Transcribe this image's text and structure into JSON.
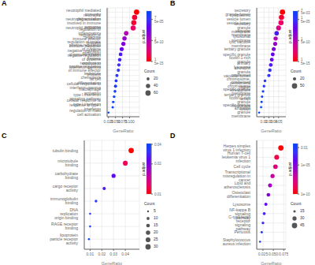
{
  "chart_data": [
    {
      "type": "scatter",
      "title": "A",
      "categories": [
        "neutrophil mediated immunity",
        "neutrophil degranulation",
        "neutrophil activation involved in immune response",
        "neutrophil activation",
        "regulation of inflammatory response",
        "regulation of immune effector process",
        "regulation of innate immune response",
        "positive regulation of cytokine production",
        "negative regulation of immune system process",
        "negative regulation of cytokine production",
        "response to interferon-gamma",
        "positive regulation of immune effector process",
        "leukocyte chemotaxis",
        "fat cell differentiation",
        "cellular response to interferon-gamma",
        "macrophage activation",
        "type I interferon signaling pathway",
        "cellular response to type I interferon",
        "response to type I interferon",
        "regulation of mast cell activation"
      ],
      "values": [
        0.125,
        0.118,
        0.115,
        0.113,
        0.088,
        0.082,
        0.078,
        0.072,
        0.068,
        0.065,
        0.062,
        0.06,
        0.055,
        0.052,
        0.05,
        0.048,
        0.045,
        0.042,
        0.04,
        0.025
      ],
      "count": [
        60,
        58,
        56,
        55,
        42,
        40,
        38,
        35,
        30,
        28,
        25,
        24,
        22,
        20,
        22,
        18,
        16,
        15,
        14,
        10
      ],
      "p_adjust": [
        1e-15,
        1e-14,
        1e-14,
        1e-13,
        1e-10,
        1e-09,
        1e-08,
        5e-08,
        1e-06,
        2e-06,
        5e-06,
        1e-05,
        2e-05,
        3e-05,
        0.0001,
        0.0002,
        0.0003,
        0.0005,
        0.0007,
        0.0008
      ],
      "xlabel": "GeneRatio",
      "xlim": [
        0.02,
        0.135
      ],
      "xticks": [
        0.025,
        {
          "value": 0.05,
          "label": "0.050"
        },
        0.075,
        {
          "value": 0.1,
          "label": "0.100"
        }
      ],
      "grid": true,
      "colorbar": {
        "label": "p.adjust",
        "log": true,
        "range": [
          1e-15,
          0.001
        ],
        "ticks": [
          {
            "value": 1e-15,
            "label": "1 5e-15"
          },
          {
            "value": 1e-10,
            "label": "1 5e-10"
          },
          {
            "value": 1e-05,
            "label": "7 5e-05"
          }
        ],
        "colormap": [
          "#FF0000",
          "#EE0066",
          "#CC0099",
          "#9900CC",
          "#6600EE",
          "#3333FF",
          "#0044FF"
        ]
      },
      "size_legend": {
        "title": "Count",
        "values": [
          20,
          40,
          60
        ]
      }
    },
    {
      "type": "scatter",
      "title": "B",
      "categories": [
        "secretory granule lumen",
        "cytoplasmic vesicle lumen",
        "vesicle lumen",
        "secretory granule membrane",
        "vacuolar membrane",
        "lysosomal membrane",
        "lytic vacuole membrane",
        "tertiary granule",
        "specific granule",
        "ficolin-1-rich granule",
        "primary lysosome",
        "azurophil granule",
        "vacuolar lumen",
        "condensed chromosome, centromeric region",
        "condensed chromosome kinetochore",
        "specific granule membrane",
        "tertiary granule lumen",
        "ficolin-1-rich granule membrane",
        "specific granule lumen",
        "azurophil granule membrane"
      ],
      "values": [
        0.058,
        0.056,
        0.055,
        0.05,
        0.046,
        0.044,
        0.043,
        0.04,
        0.038,
        0.036,
        0.034,
        0.032,
        0.03,
        0.022,
        0.02,
        0.018,
        0.016,
        0.015,
        0.014,
        0.01
      ],
      "count": [
        50,
        48,
        47,
        42,
        35,
        32,
        30,
        28,
        27,
        26,
        25,
        22,
        20,
        15,
        14,
        12,
        11,
        10,
        9,
        8
      ],
      "p_adjust": [
        1e-15,
        1e-14,
        1e-13,
        1e-12,
        1e-06,
        1e-10,
        1e-09,
        1e-08,
        1e-07,
        1e-07,
        1e-06,
        1e-05,
        1e-05,
        2e-05,
        3e-05,
        0.0001,
        0.0002,
        0.0003,
        0.0005,
        0.001
      ],
      "xlabel": "GeneRatio",
      "xlim": [
        0.005,
        0.065
      ],
      "xticks": [
        0.02,
        0.03,
        0.04,
        0.05
      ],
      "grid": true,
      "colorbar": {
        "label": "p.adjust",
        "log": true,
        "range": [
          1e-15,
          0.001
        ],
        "ticks": [
          {
            "value": 1e-15,
            "label": "1 5e-15"
          },
          {
            "value": 1e-10,
            "label": "1 5e-10"
          },
          {
            "value": 1e-05,
            "label": "1 5e-05"
          },
          {
            "value": 0.001,
            "label": "1 5e-03"
          }
        ],
        "colormap": [
          "#FF0000",
          "#EE0066",
          "#CC0099",
          "#9900CC",
          "#6600EE",
          "#3333FF",
          "#0044FF"
        ]
      },
      "size_legend": {
        "title": "Count",
        "values": [
          20,
          50
        ]
      }
    },
    {
      "type": "scatter",
      "title": "C",
      "categories": [
        "tubulin binding",
        "microtubule binding",
        "carbohydrate binding",
        "cargo receptor activity",
        "immunoglobulin binding",
        "DNA replication origin binding",
        "RAGE receptor binding",
        "lipoprotein particle receptor activity"
      ],
      "values": [
        0.045,
        0.04,
        0.03,
        0.022,
        0.015,
        0.01,
        0.01,
        0.009
      ],
      "count": [
        30,
        25,
        18,
        12,
        8,
        5,
        5,
        5
      ],
      "p_adjust": [
        1e-08,
        1e-07,
        0.0005,
        0.001,
        0.005,
        0.01,
        0.02,
        0.04
      ],
      "xlabel": "GeneRatio",
      "xlim": [
        0.005,
        0.052
      ],
      "xticks": [
        0.01,
        0.02,
        0.03,
        0.04
      ],
      "grid": true,
      "colorbar": {
        "label": "p.adjust",
        "log": true,
        "range": [
          1e-08,
          0.05
        ],
        "ticks": [
          {
            "value": 1e-08,
            "label": "0.01"
          },
          {
            "value": 0.0001,
            "label": "0.02"
          },
          0.04
        ],
        "colormap": [
          "#FF0000",
          "#EE0066",
          "#CC0099",
          "#9900CC",
          "#6600EE",
          "#3333FF",
          "#0044FF"
        ]
      },
      "size_legend": {
        "title": "Count",
        "values": [
          5,
          10,
          15,
          20,
          25,
          30
        ]
      }
    },
    {
      "type": "scatter",
      "title": "D",
      "categories": [
        "Herpes simplex virus 1 infection",
        "Human T-cell leukemia virus 1 infection",
        "Cell cycle",
        "Transcriptional misregulation in cancer",
        "Lipid and atherosclerosis",
        "Osteoclast differentiation",
        "Lysosome",
        "NF-kappa B signaling pathway",
        "C-type lectin receptor signaling pathway",
        "Pertussis",
        "Staphylococcus aureus infection"
      ],
      "values": [
        0.068,
        0.058,
        0.055,
        0.048,
        0.042,
        0.038,
        0.032,
        0.028,
        0.025,
        0.022,
        0.018
      ],
      "count": [
        45,
        38,
        35,
        30,
        28,
        25,
        20,
        18,
        16,
        14,
        12
      ],
      "p_adjust": [
        1e-10,
        1e-09,
        1e-08,
        1e-07,
        1e-06,
        1e-05,
        0.0001,
        0.0005,
        0.001,
        0.005,
        0.01
      ],
      "xlabel": "GeneRatio",
      "xlim": [
        0.01,
        0.08
      ],
      "xticks": [
        0.025,
        {
          "value": 0.05,
          "label": "0.050"
        },
        0.075
      ],
      "grid": true,
      "colorbar": {
        "label": "p.adjust",
        "log": true,
        "range": [
          1e-10,
          0.05
        ],
        "ticks": [
          {
            "value": 1e-10,
            "label": "1e-10"
          },
          {
            "value": 1e-05,
            "label": "1e-05"
          },
          0.01
        ],
        "colormap": [
          "#FF0000",
          "#EE0066",
          "#CC0099",
          "#9900CC",
          "#6600EE",
          "#3333FF",
          "#0044FF"
        ]
      },
      "size_legend": {
        "title": "Count",
        "values": [
          15,
          30,
          45
        ]
      }
    }
  ]
}
